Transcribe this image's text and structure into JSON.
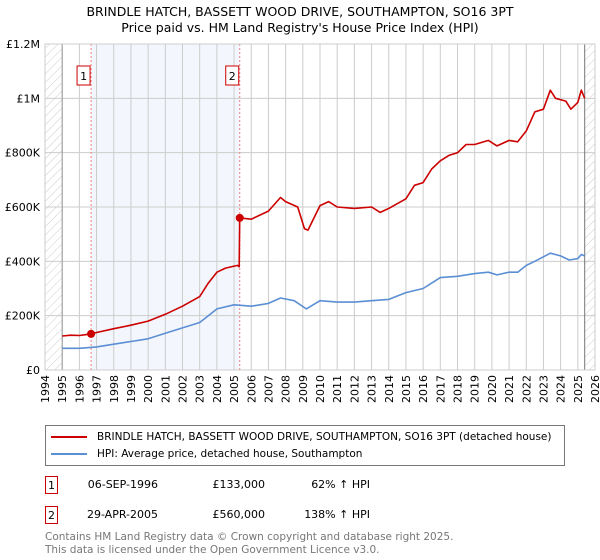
{
  "chart_data": {
    "type": "line",
    "title": "BRINDLE HATCH, BASSETT WOOD DRIVE, SOUTHAMPTON, SO16 3PT",
    "subtitle": "Price paid vs. HM Land Registry's House Price Index (HPI)",
    "xlim": [
      1994,
      2026
    ],
    "ylim": [
      0,
      1200000
    ],
    "x_ticks": [
      "1994",
      "1995",
      "1996",
      "1997",
      "1998",
      "1999",
      "2000",
      "2001",
      "2002",
      "2003",
      "2004",
      "2005",
      "2006",
      "2007",
      "2008",
      "2009",
      "2010",
      "2011",
      "2012",
      "2013",
      "2014",
      "2015",
      "2016",
      "2017",
      "2018",
      "2019",
      "2020",
      "2021",
      "2022",
      "2023",
      "2024",
      "2025",
      "2026"
    ],
    "y_ticks": [
      {
        "v": 0,
        "label": "£0"
      },
      {
        "v": 200000,
        "label": "£200K"
      },
      {
        "v": 400000,
        "label": "£400K"
      },
      {
        "v": 600000,
        "label": "£600K"
      },
      {
        "v": 800000,
        "label": "£800K"
      },
      {
        "v": 1000000,
        "label": "£1M"
      },
      {
        "v": 1200000,
        "label": "£1.2M"
      }
    ],
    "grid": true,
    "data_range": [
      1995,
      2025.4
    ],
    "series": [
      {
        "name": "BRINDLE HATCH, BASSETT WOOD DRIVE, SOUTHAMPTON, SO16 3PT (detached house)",
        "color": "#cc0000",
        "x": [
          1995,
          1995.5,
          1996,
          1996.68,
          1997,
          1998,
          1999,
          2000,
          2001,
          2002,
          2003,
          2003.5,
          2004,
          2004.5,
          2005.2,
          2005.3,
          2005.33,
          2006,
          2007,
          2007.7,
          2008,
          2008.7,
          2009.1,
          2009.3,
          2010,
          2010.5,
          2011,
          2012,
          2013,
          2013.5,
          2014,
          2015,
          2015.5,
          2016,
          2016.5,
          2017,
          2017.5,
          2018,
          2018.5,
          2019,
          2019.8,
          2020.3,
          2021,
          2021.5,
          2022,
          2022.5,
          2023,
          2023.4,
          2023.7,
          2024.3,
          2024.6,
          2025,
          2025.2,
          2025.4
        ],
        "y": [
          125000,
          128000,
          127000,
          133000,
          138000,
          152000,
          165000,
          180000,
          205000,
          235000,
          270000,
          320000,
          360000,
          375000,
          385000,
          380000,
          560000,
          555000,
          585000,
          635000,
          620000,
          600000,
          520000,
          515000,
          605000,
          620000,
          600000,
          595000,
          600000,
          580000,
          595000,
          630000,
          680000,
          690000,
          740000,
          770000,
          790000,
          800000,
          830000,
          830000,
          845000,
          825000,
          845000,
          840000,
          880000,
          950000,
          960000,
          1030000,
          1000000,
          990000,
          960000,
          985000,
          1030000,
          1000000
        ]
      },
      {
        "name": "HPI: Average price, detached house, Southampton",
        "color": "#5b8fd4",
        "x": [
          1995,
          1996,
          1997,
          1998,
          1999,
          2000,
          2001,
          2002,
          2003,
          2003.5,
          2004,
          2005,
          2006,
          2007,
          2007.7,
          2008.5,
          2009.2,
          2010,
          2011,
          2012,
          2013,
          2014,
          2015,
          2016,
          2016.5,
          2017,
          2018,
          2019,
          2019.8,
          2020.3,
          2021,
          2021.5,
          2022,
          2022.5,
          2023.4,
          2024,
          2024.5,
          2025,
          2025.2,
          2025.4
        ],
        "y": [
          80000,
          80000,
          85000,
          95000,
          105000,
          115000,
          135000,
          155000,
          175000,
          200000,
          225000,
          240000,
          235000,
          245000,
          265000,
          255000,
          225000,
          255000,
          250000,
          250000,
          255000,
          260000,
          285000,
          300000,
          320000,
          340000,
          345000,
          355000,
          360000,
          350000,
          360000,
          360000,
          385000,
          400000,
          430000,
          420000,
          405000,
          410000,
          425000,
          420000
        ]
      }
    ],
    "annotations": [
      {
        "label": "1",
        "x": 1996.68,
        "y": 133000
      },
      {
        "label": "2",
        "x": 2005.33,
        "y": 560000
      }
    ]
  },
  "legend": {
    "items": [
      {
        "label": "BRINDLE HATCH, BASSETT WOOD DRIVE, SOUTHAMPTON, SO16 3PT (detached house)",
        "color": "#cc0000"
      },
      {
        "label": "HPI: Average price, detached house, Southampton",
        "color": "#5b8fd4"
      }
    ]
  },
  "transactions": [
    {
      "num": "1",
      "date": "06-SEP-1996",
      "price": "£133,000",
      "hpi": "62% ↑ HPI"
    },
    {
      "num": "2",
      "date": "29-APR-2005",
      "price": "£560,000",
      "hpi": "138% ↑ HPI"
    }
  ],
  "footer": {
    "line1": "Contains HM Land Registry data © Crown copyright and database right 2025.",
    "line2": "This data is licensed under the Open Government Licence v3.0."
  }
}
